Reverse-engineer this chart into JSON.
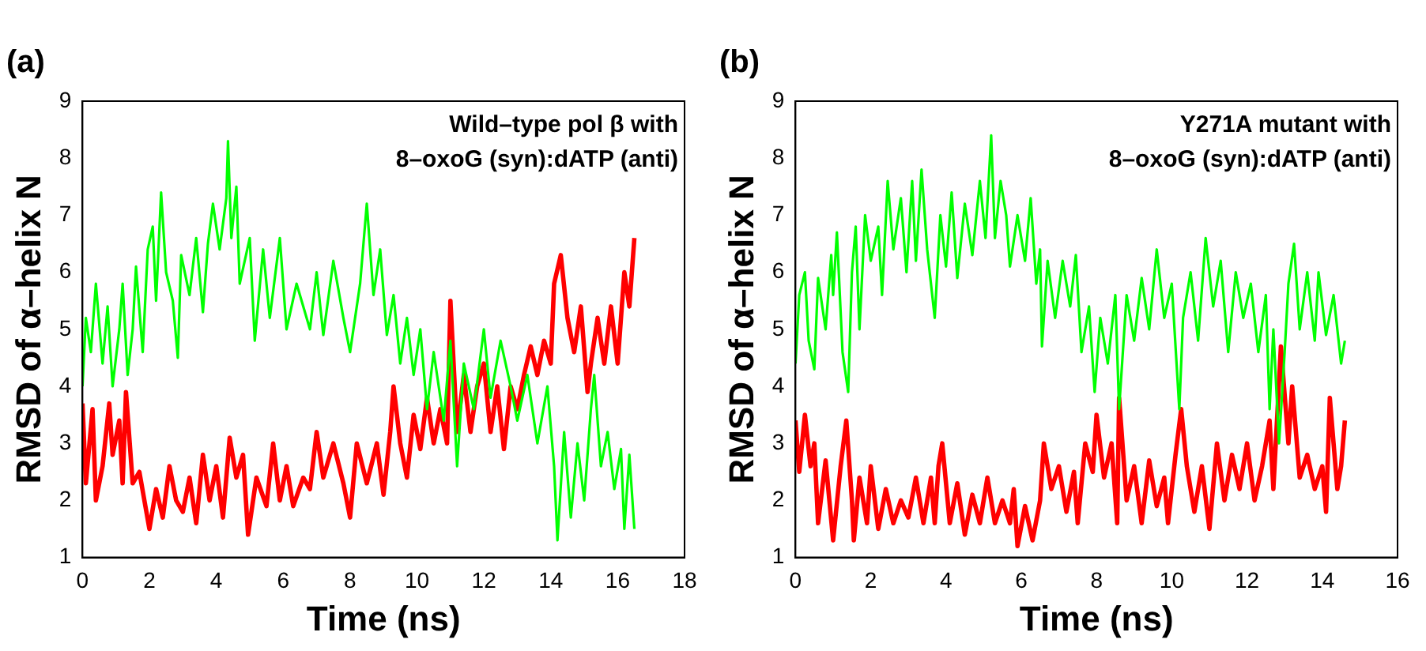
{
  "chart_data": [
    {
      "type": "line",
      "title": "(a)",
      "xlabel": "Time (ns)",
      "ylabel": "RMSD of α–helix N",
      "annotations": [
        "Wild–type pol β with",
        "8–oxoG (syn):dATP (anti)"
      ],
      "xlim": [
        0,
        18
      ],
      "xticks": [
        0,
        2,
        4,
        6,
        8,
        10,
        12,
        14,
        16,
        18
      ],
      "ylim": [
        1,
        9
      ],
      "yticks": [
        1,
        2,
        3,
        4,
        5,
        6,
        7,
        8,
        9
      ],
      "series": [
        {
          "color": "#00ff00",
          "x": [
            0,
            0.1,
            0.25,
            0.4,
            0.6,
            0.75,
            0.9,
            1.1,
            1.2,
            1.35,
            1.5,
            1.6,
            1.8,
            1.95,
            2.1,
            2.2,
            2.35,
            2.5,
            2.7,
            2.85,
            2.95,
            3.2,
            3.4,
            3.6,
            3.75,
            3.9,
            4.1,
            4.3,
            4.35,
            4.45,
            4.6,
            4.7,
            5.0,
            5.15,
            5.4,
            5.6,
            5.9,
            6.1,
            6.4,
            6.8,
            7.0,
            7.2,
            7.5,
            7.8,
            8.0,
            8.3,
            8.5,
            8.7,
            8.9,
            9.1,
            9.3,
            9.5,
            9.7,
            9.9,
            10.1,
            10.3,
            10.5,
            10.8,
            11.0,
            11.2,
            11.4,
            11.7,
            12.0,
            12.2,
            12.5,
            12.8,
            13.0,
            13.3,
            13.6,
            13.9,
            14.1,
            14.2,
            14.4,
            14.6,
            14.8,
            15.0,
            15.2,
            15.3,
            15.5,
            15.7,
            15.9,
            16.1,
            16.2,
            16.35,
            16.5
          ],
          "values": [
            4.0,
            5.2,
            4.6,
            5.8,
            4.4,
            5.4,
            4.0,
            5.0,
            5.8,
            4.2,
            5.0,
            6.1,
            4.6,
            6.4,
            6.8,
            5.5,
            7.4,
            6.0,
            5.5,
            4.5,
            6.3,
            5.6,
            6.6,
            5.3,
            6.5,
            7.2,
            6.4,
            7.3,
            8.3,
            6.6,
            7.5,
            5.8,
            6.6,
            4.8,
            6.4,
            5.2,
            6.6,
            5.0,
            5.8,
            5.0,
            6.0,
            4.9,
            6.2,
            5.2,
            4.6,
            5.8,
            7.2,
            5.6,
            6.4,
            4.9,
            5.6,
            4.4,
            5.2,
            4.2,
            5.0,
            3.6,
            4.6,
            3.4,
            4.8,
            2.6,
            4.4,
            3.6,
            5.0,
            3.8,
            4.8,
            4.0,
            3.4,
            4.2,
            3.0,
            4.0,
            2.6,
            1.3,
            3.2,
            1.7,
            3.0,
            2.0,
            3.6,
            4.2,
            2.6,
            3.2,
            2.2,
            2.9,
            1.5,
            2.8,
            1.5
          ]
        },
        {
          "color": "#ff0000",
          "x": [
            0,
            0.1,
            0.3,
            0.4,
            0.6,
            0.8,
            0.9,
            1.1,
            1.2,
            1.3,
            1.5,
            1.7,
            2.0,
            2.2,
            2.4,
            2.6,
            2.8,
            3.0,
            3.2,
            3.4,
            3.6,
            3.8,
            4.0,
            4.2,
            4.4,
            4.6,
            4.8,
            4.95,
            5.2,
            5.5,
            5.7,
            5.9,
            6.1,
            6.3,
            6.6,
            6.8,
            7.0,
            7.2,
            7.5,
            7.8,
            8.0,
            8.2,
            8.5,
            8.8,
            9.0,
            9.2,
            9.3,
            9.5,
            9.7,
            9.9,
            10.1,
            10.3,
            10.5,
            10.7,
            10.9,
            11.0,
            11.2,
            11.4,
            11.6,
            11.8,
            12.0,
            12.2,
            12.4,
            12.6,
            12.8,
            13.0,
            13.2,
            13.4,
            13.6,
            13.8,
            14.0,
            14.1,
            14.3,
            14.5,
            14.7,
            14.9,
            15.1,
            15.2,
            15.4,
            15.6,
            15.8,
            16.0,
            16.1,
            16.2,
            16.35,
            16.5
          ],
          "values": [
            3.7,
            2.3,
            3.6,
            2.0,
            2.6,
            3.7,
            2.8,
            3.4,
            2.3,
            3.9,
            2.3,
            2.5,
            1.5,
            2.2,
            1.7,
            2.6,
            2.0,
            1.8,
            2.4,
            1.6,
            2.8,
            2.0,
            2.6,
            1.7,
            3.1,
            2.4,
            2.8,
            1.4,
            2.4,
            1.9,
            3.0,
            2.0,
            2.6,
            1.9,
            2.4,
            2.2,
            3.2,
            2.4,
            3.0,
            2.3,
            1.7,
            3.0,
            2.3,
            3.0,
            2.1,
            3.2,
            4.0,
            3.0,
            2.4,
            3.5,
            2.9,
            3.8,
            3.0,
            3.6,
            3.0,
            5.5,
            3.2,
            4.2,
            3.2,
            4.0,
            4.4,
            3.2,
            4.0,
            2.9,
            4.0,
            3.6,
            4.2,
            4.7,
            4.2,
            4.8,
            4.4,
            5.8,
            6.3,
            5.2,
            4.6,
            5.4,
            3.9,
            4.4,
            5.2,
            4.4,
            5.4,
            4.4,
            5.2,
            6.0,
            5.4,
            6.6
          ]
        }
      ]
    },
    {
      "type": "line",
      "title": "(b)",
      "xlabel": "Time (ns)",
      "ylabel": "RMSD of α–helix N",
      "annotations": [
        "Y271A mutant with",
        "8–oxoG (syn):dATP (anti)"
      ],
      "xlim": [
        0,
        16
      ],
      "xticks": [
        0,
        2,
        4,
        6,
        8,
        10,
        12,
        14,
        16
      ],
      "ylim": [
        1,
        9
      ],
      "yticks": [
        1,
        2,
        3,
        4,
        5,
        6,
        7,
        8,
        9
      ],
      "series": [
        {
          "color": "#00ff00",
          "x": [
            0,
            0.1,
            0.25,
            0.35,
            0.5,
            0.6,
            0.8,
            0.95,
            1.0,
            1.1,
            1.25,
            1.4,
            1.5,
            1.6,
            1.7,
            1.85,
            2.0,
            2.2,
            2.3,
            2.45,
            2.6,
            2.8,
            2.95,
            3.1,
            3.2,
            3.35,
            3.5,
            3.7,
            3.85,
            4.0,
            4.15,
            4.3,
            4.5,
            4.7,
            4.9,
            5.05,
            5.2,
            5.3,
            5.45,
            5.6,
            5.7,
            5.9,
            6.1,
            6.25,
            6.4,
            6.5,
            6.55,
            6.7,
            6.9,
            7.1,
            7.3,
            7.45,
            7.6,
            7.8,
            7.95,
            8.1,
            8.3,
            8.5,
            8.6,
            8.8,
            9.0,
            9.2,
            9.4,
            9.6,
            9.8,
            10.0,
            10.2,
            10.3,
            10.5,
            10.7,
            10.9,
            11.1,
            11.3,
            11.5,
            11.7,
            11.9,
            12.1,
            12.3,
            12.5,
            12.6,
            12.7,
            12.85,
            13.0,
            13.1,
            13.25,
            13.4,
            13.6,
            13.8,
            13.9,
            14.1,
            14.3,
            14.5,
            14.6
          ],
          "values": [
            4.4,
            5.6,
            6.0,
            4.8,
            4.3,
            5.9,
            5.0,
            6.3,
            5.6,
            6.7,
            4.6,
            3.9,
            6.0,
            6.8,
            5.0,
            7.0,
            6.2,
            6.8,
            5.6,
            7.6,
            6.4,
            7.3,
            6.0,
            7.6,
            6.2,
            7.8,
            6.4,
            5.2,
            7.0,
            6.1,
            7.4,
            5.9,
            7.2,
            6.3,
            7.6,
            6.6,
            8.4,
            6.6,
            7.6,
            7.0,
            6.1,
            7.0,
            6.2,
            7.3,
            5.8,
            6.4,
            4.7,
            6.2,
            5.2,
            6.2,
            5.4,
            6.3,
            4.6,
            5.4,
            3.9,
            5.2,
            4.4,
            5.6,
            3.6,
            5.6,
            4.8,
            5.9,
            5.0,
            6.4,
            5.2,
            5.8,
            3.6,
            5.2,
            6.0,
            4.8,
            6.6,
            5.4,
            6.2,
            4.6,
            6.0,
            5.2,
            5.8,
            4.6,
            5.6,
            3.6,
            5.0,
            3.0,
            4.6,
            5.8,
            6.5,
            5.0,
            6.0,
            4.8,
            6.0,
            4.9,
            5.6,
            4.4,
            4.8
          ]
        },
        {
          "color": "#ff0000",
          "x": [
            0,
            0.1,
            0.25,
            0.4,
            0.5,
            0.6,
            0.8,
            1.0,
            1.2,
            1.35,
            1.5,
            1.55,
            1.7,
            1.9,
            2.0,
            2.2,
            2.4,
            2.6,
            2.8,
            3.0,
            3.2,
            3.4,
            3.6,
            3.7,
            3.8,
            3.9,
            4.1,
            4.3,
            4.5,
            4.7,
            4.9,
            5.1,
            5.3,
            5.5,
            5.7,
            5.8,
            5.9,
            6.1,
            6.3,
            6.5,
            6.6,
            6.8,
            7.0,
            7.2,
            7.4,
            7.5,
            7.7,
            7.9,
            8.0,
            8.2,
            8.4,
            8.55,
            8.6,
            8.8,
            9.0,
            9.2,
            9.4,
            9.6,
            9.8,
            9.9,
            10.1,
            10.25,
            10.4,
            10.6,
            10.8,
            11.0,
            11.2,
            11.4,
            11.6,
            11.8,
            12.0,
            12.2,
            12.4,
            12.6,
            12.7,
            12.9,
            13.1,
            13.2,
            13.4,
            13.6,
            13.8,
            14.0,
            14.1,
            14.2,
            14.4,
            14.5,
            14.6
          ],
          "values": [
            3.4,
            2.5,
            3.5,
            2.6,
            3.0,
            1.6,
            2.7,
            1.3,
            2.6,
            3.4,
            2.0,
            1.3,
            2.4,
            1.6,
            2.6,
            1.5,
            2.2,
            1.6,
            2.0,
            1.7,
            2.4,
            1.6,
            2.4,
            1.6,
            2.6,
            3.0,
            1.6,
            2.3,
            1.4,
            2.1,
            1.6,
            2.4,
            1.6,
            2.0,
            1.6,
            2.2,
            1.2,
            1.9,
            1.3,
            2.0,
            3.0,
            2.2,
            2.6,
            1.8,
            2.5,
            1.6,
            3.0,
            2.5,
            3.5,
            2.4,
            3.0,
            1.6,
            3.8,
            2.0,
            2.6,
            1.6,
            2.7,
            1.9,
            2.4,
            1.6,
            2.8,
            3.6,
            2.6,
            1.8,
            2.6,
            1.5,
            3.0,
            2.0,
            2.8,
            2.2,
            3.0,
            2.0,
            2.6,
            3.4,
            2.2,
            4.7,
            3.0,
            4.0,
            2.4,
            2.8,
            2.2,
            2.6,
            1.8,
            3.8,
            2.2,
            2.6,
            3.4
          ]
        }
      ]
    }
  ]
}
